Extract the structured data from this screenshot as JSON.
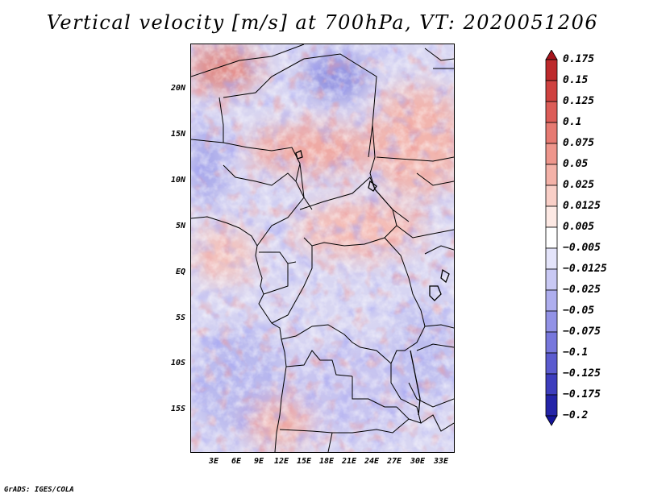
{
  "title": "Vertical velocity [m/s] at 700hPa, VT: 2020051206",
  "footer": "GrADS: IGES/COLA",
  "map": {
    "lat_labels": [
      "20N",
      "15N",
      "10N",
      "5N",
      "EQ",
      "5S",
      "10S",
      "15S"
    ],
    "lon_labels": [
      "3E",
      "6E",
      "9E",
      "12E",
      "15E",
      "18E",
      "21E",
      "24E",
      "27E",
      "30E",
      "33E"
    ],
    "lat_range": [
      -20,
      24.5
    ],
    "lon_range": [
      -0.3,
      34.5
    ]
  },
  "colorbar": {
    "labels": [
      "0.175",
      "0.15",
      "0.125",
      "0.1",
      "0.075",
      "0.05",
      "0.025",
      "0.0125",
      "0.005",
      "−0.005",
      "−0.0125",
      "−0.025",
      "−0.05",
      "−0.075",
      "−0.1",
      "−0.125",
      "−0.175",
      "−0.2"
    ],
    "colors": [
      "#a5141c",
      "#bd2a2c",
      "#cf4240",
      "#dc5d58",
      "#e67a72",
      "#ee968c",
      "#f4b2a8",
      "#f9cfc7",
      "#fde9e4",
      "#ffffff",
      "#e4e4fa",
      "#c9c9f4",
      "#aeaeee",
      "#9292e6",
      "#7777dc",
      "#5b5bcf",
      "#3d3dbd",
      "#2424a8",
      "#14149a"
    ]
  }
}
